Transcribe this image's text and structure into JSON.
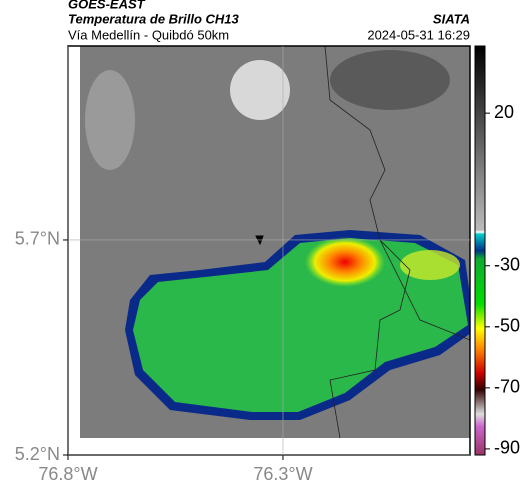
{
  "header": {
    "title": "GOES-EAST",
    "subtitle": "Temperatura de Brillo CH13",
    "org": "SIATA",
    "region": "Vía Medellín - Quibdó 50km",
    "datetime": "2024-05-31 16:29"
  },
  "map": {
    "xlim": [
      -76.8,
      -75.865
    ],
    "ylim": [
      5.2,
      6.151
    ],
    "xticks": [
      {
        "value": -76.8,
        "label": "76.8°W"
      },
      {
        "value": -76.3,
        "label": "76.3°W"
      }
    ],
    "yticks": [
      {
        "value": 5.7,
        "label": "5.7°N"
      },
      {
        "value": 5.2,
        "label": "5.2°N"
      }
    ]
  },
  "colorbar": {
    "lim": [
      -92,
      42
    ],
    "ticks": [
      20,
      -30,
      -50,
      -70,
      -90
    ]
  }
}
